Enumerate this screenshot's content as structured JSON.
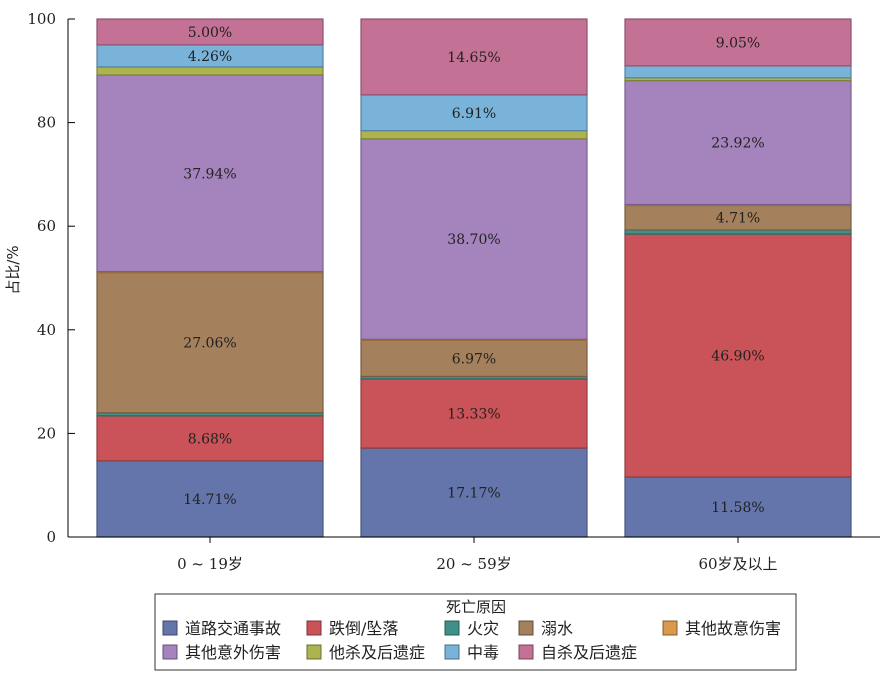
{
  "chart_data": {
    "type": "bar",
    "stacked": true,
    "title": "",
    "xlabel": "",
    "ylabel": "占比/%",
    "ylim": [
      0,
      100
    ],
    "yticks": [
      0,
      20,
      40,
      60,
      80,
      100
    ],
    "grid": false,
    "legend_title": "死亡原因",
    "legend_position": "bottom",
    "categories": [
      "0 ~ 19岁",
      "20 ~ 59岁",
      "60岁及以上"
    ],
    "series": [
      {
        "name": "道路交通事故",
        "color": "#6475AC",
        "values": [
          14.71,
          17.17,
          11.58
        ],
        "labels": [
          "14.71%",
          "17.17%",
          "11.58%"
        ]
      },
      {
        "name": "跌倒/坠落",
        "color": "#C95358",
        "values": [
          8.68,
          13.33,
          46.9
        ],
        "labels": [
          "8.68%",
          "13.33%",
          "46.90%"
        ]
      },
      {
        "name": "火灾",
        "color": "#3E9088",
        "values": [
          0.6,
          0.5,
          0.8
        ],
        "labels": [
          "",
          "",
          ""
        ]
      },
      {
        "name": "溺水",
        "color": "#A4805C",
        "values": [
          27.06,
          6.97,
          4.71
        ],
        "labels": [
          "27.06%",
          "6.97%",
          "4.71%"
        ]
      },
      {
        "name": "其他故意伤害",
        "color": "#D99A4E",
        "values": [
          0.2,
          0.2,
          0.2
        ],
        "labels": [
          "",
          "",
          ""
        ]
      },
      {
        "name": "其他意外伤害",
        "color": "#A584BE",
        "values": [
          37.94,
          38.7,
          23.92
        ],
        "labels": [
          "37.94%",
          "38.70%",
          "23.92%"
        ]
      },
      {
        "name": "他杀及后遗症",
        "color": "#ADB44F",
        "values": [
          1.55,
          1.57,
          0.54
        ],
        "labels": [
          "",
          "",
          ""
        ]
      },
      {
        "name": "中毒",
        "color": "#79B3D9",
        "values": [
          4.26,
          6.91,
          2.3
        ],
        "labels": [
          "4.26%",
          "6.91%",
          ""
        ]
      },
      {
        "name": "自杀及后遗症",
        "color": "#C47196",
        "values": [
          5.0,
          14.65,
          9.05
        ],
        "labels": [
          "5.00%",
          "14.65%",
          "9.05%"
        ]
      }
    ]
  }
}
